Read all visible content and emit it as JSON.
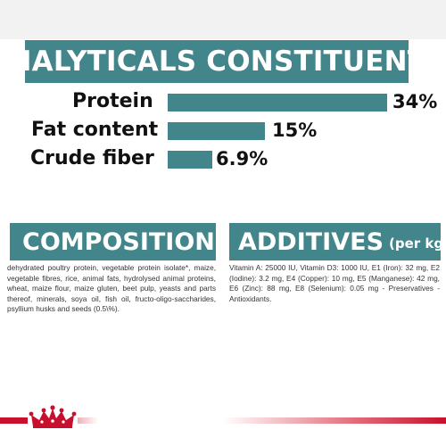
{
  "analytics": {
    "title": "ANALYTICALS CONSTITUENTS",
    "bar_color": "#42858a",
    "items": [
      {
        "label": "Protein",
        "value": "34%",
        "percent": 34
      },
      {
        "label": "Fat content",
        "value": "15%",
        "percent": 15
      },
      {
        "label": "Crude fiber",
        "value": "6.9%",
        "percent": 6.9
      }
    ]
  },
  "composition": {
    "title": "COMPOSITION",
    "text": "dehydrated poultry protein, vegetable protein isolate*, maize, vegetable fibres, rice, animal fats, hydrolysed animal proteins, wheat, maize flour, maize gluten, beet pulp, yeasts and parts thereof, minerals, soya oil, fish oil, fructo-oligo-saccharides, psyllium husks and seeds (0.5\\%)."
  },
  "additives": {
    "title": "ADDITIVES",
    "title_suffix": "(per kg)",
    "text": "Vitamin A: 25000 IU, Vitamin D3: 1000 IU, E1 (Iron): 32 mg, E2 (Iodine): 3.2 mg, E4 (Copper): 10 mg, E5 (Manganese): 42 mg, E6 (Zinc): 88 mg, E8 (Selenium): 0.05 mg - Preservatives - Antioxidants."
  },
  "brand": {
    "logo": "crown-icon",
    "accent_color": "#c8102e"
  }
}
